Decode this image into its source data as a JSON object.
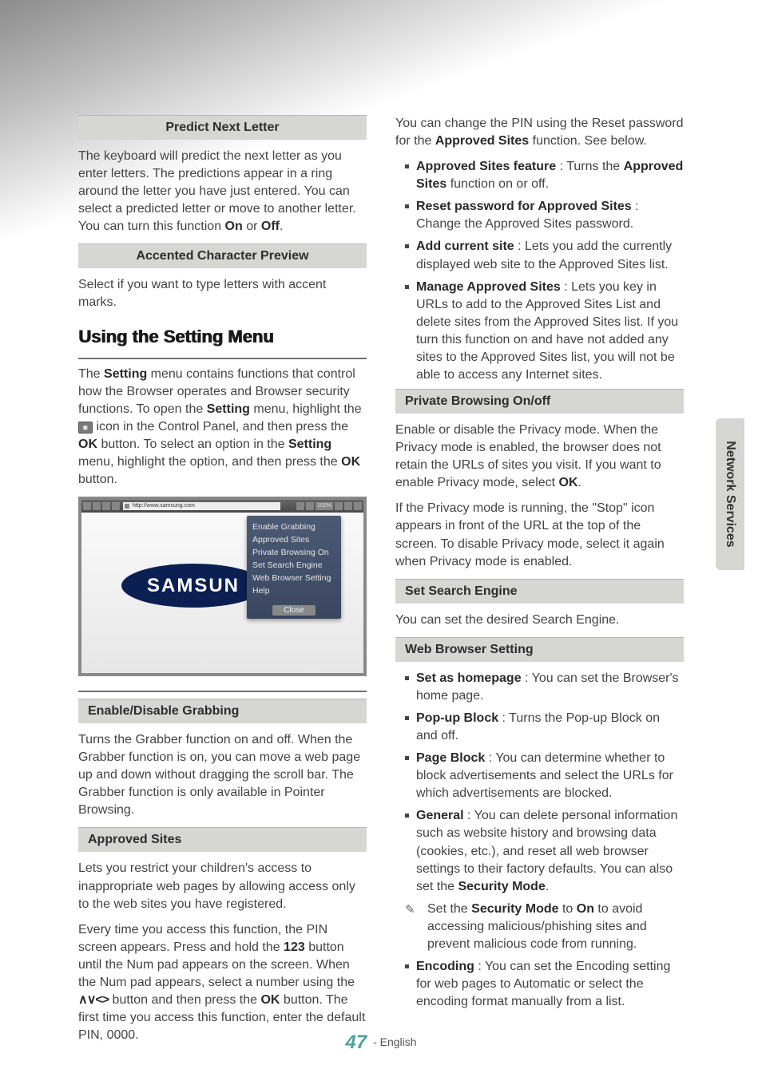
{
  "side_tab": {
    "label": "Network Services"
  },
  "footer": {
    "page_number": "47",
    "language": "- English"
  },
  "col1": {
    "predict": {
      "heading": "Predict Next Letter",
      "body_pre": "The keyboard will predict the next letter as you enter letters. The predictions appear in a ring around the letter you have just entered. You can select a predicted letter or move to another letter. You can turn this function ",
      "on": "On",
      "mid": " or ",
      "off": "Off",
      "end": "."
    },
    "accented": {
      "heading": "Accented Character Preview",
      "body": "Select if you want to type letters with accent marks."
    },
    "using": {
      "heading": "Using the Setting Menu",
      "p_pre1": "The ",
      "setting1": "Setting",
      "p_mid1": " menu contains functions that control how the Browser operates and Browser security functions. To open the ",
      "setting2": "Setting",
      "p_mid2": " menu, highlight the ",
      "p_mid3": " icon in the Control Panel, and then press the ",
      "ok1": "OK",
      "p_mid4": " button. To select an option in the ",
      "setting3": "Setting",
      "p_mid5": " menu, highlight the option, and then press the ",
      "ok2": "OK",
      "p_end": " button."
    },
    "browser_shot": {
      "url": "http://www.samsung.com",
      "zoom": "100%",
      "logo": "SAMSUN",
      "menu": {
        "items": [
          "Enable Grabbing",
          "Approved Sites",
          "Private Browsing On",
          "Set Search Engine",
          "Web Browser Setting",
          "Help"
        ],
        "close": "Close"
      }
    },
    "grabbing": {
      "heading": "Enable/Disable Grabbing",
      "body": "Turns the Grabber function on and off. When the Grabber function is on, you can move a web page up and down without dragging the scroll bar. The Grabber function is only available in Pointer Browsing."
    },
    "approved": {
      "heading": "Approved Sites",
      "p1": "Lets you restrict your children's access to inappropriate web pages by allowing access only to the web sites you have registered.",
      "p2_pre": "Every time you access this function, the PIN screen appears. Press and hold the ",
      "p2_123": "123",
      "p2_mid1": " button until the Num pad appears on the screen. When the Num pad appears, select a number using the ",
      "p2_nav": "∧∨<>",
      "p2_mid2": " button and then press the ",
      "p2_ok": "OK",
      "p2_end": " button. The first time you access this function, enter the default PIN, 0000."
    }
  },
  "col2": {
    "intro_pre": "You can change the PIN using the Reset password for the ",
    "intro_bold": "Approved Sites",
    "intro_end": " function. See below.",
    "bullets": [
      {
        "bold": "Approved Sites feature",
        "sep": " : ",
        "mid": "Turns the ",
        "bold2": "Approved Sites",
        "rest": " function on or off."
      },
      {
        "bold": "Reset password for Approved Sites",
        "sep": " : ",
        "rest": "Change the Approved Sites password."
      },
      {
        "bold": "Add current site",
        "sep": " : ",
        "rest": "Lets you add the currently displayed web site to the Approved Sites list."
      },
      {
        "bold": "Manage Approved Sites",
        "sep": " : ",
        "rest": "Lets you key in URLs to add to the Approved Sites List and delete sites from the Approved Sites list. If you turn this function on and have not added any sites to the Approved Sites list, you will not be able to access any Internet sites."
      }
    ],
    "private": {
      "heading": "Private Browsing On/off",
      "p1_pre": "Enable or disable the Privacy mode. When the Privacy mode is enabled, the browser does not retain the URLs of sites you visit. If you want to enable Privacy mode, select ",
      "p1_ok": "OK",
      "p1_end": ".",
      "p2": "If the Privacy mode is running, the \"Stop\" icon appears in front of the URL at the top of the screen. To disable Privacy mode, select it again when Privacy mode is enabled."
    },
    "search": {
      "heading": "Set Search Engine",
      "body": "You can set the desired Search Engine."
    },
    "wbs": {
      "heading": "Web Browser Setting",
      "items": [
        {
          "bold": "Set as homepage",
          "sep": " : ",
          "rest": "You can set the Browser's home page."
        },
        {
          "bold": "Pop-up Block",
          "sep": " : ",
          "rest": "Turns the Pop-up Block on and off."
        },
        {
          "bold": "Page Block",
          "sep": " : ",
          "rest": "You can determine whether to block advertisements and select the URLs for which advertisements are blocked."
        },
        {
          "bold": "General",
          "sep": " : ",
          "rest_pre": "You can delete personal information such as website history and browsing data (cookies, etc.), and reset all web browser settings to their factory defaults. You can also set the ",
          "rest_bold": "Security Mode",
          "rest_end": "."
        }
      ],
      "note_pre": "Set the ",
      "note_bold1": "Security Mode",
      "note_mid": " to ",
      "note_bold2": "On",
      "note_end": " to avoid accessing malicious/phishing sites and prevent malicious code from running.",
      "encoding": {
        "bold": "Encoding",
        "sep": " : ",
        "rest": "You can set the Encoding setting for web pages to Automatic or select the encoding format manually from a list."
      }
    }
  }
}
